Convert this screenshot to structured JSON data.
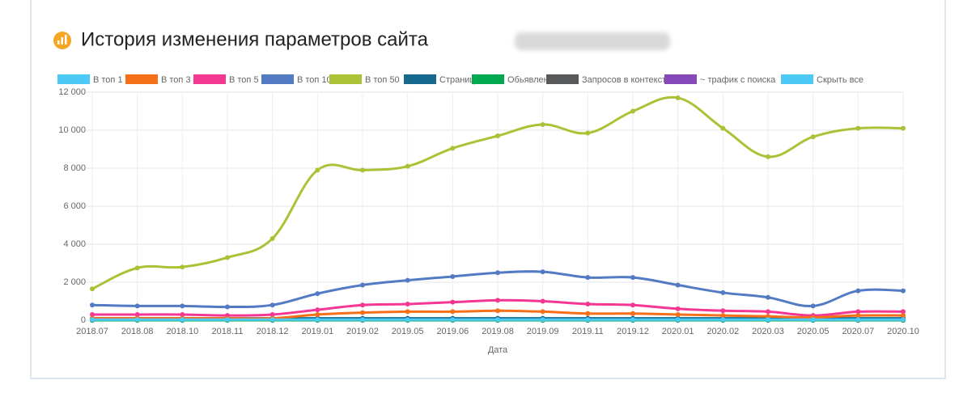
{
  "chart_data": {
    "type": "line",
    "title": "История изменения параметров сайта",
    "x_label": "Дата",
    "categories": [
      "2018.07",
      "2018.08",
      "2018.10",
      "2018.11",
      "2018.12",
      "2019.01",
      "2019.02",
      "2019.05",
      "2019.06",
      "2019.08",
      "2019.09",
      "2019.11",
      "2019.12",
      "2020.01",
      "2020.02",
      "2020.03",
      "2020.05",
      "2020.07",
      "2020.10"
    ],
    "series": [
      {
        "name": "В топ 1",
        "color": "#4dc9f6",
        "values": [
          30,
          30,
          30,
          30,
          30,
          30,
          30,
          30,
          30,
          30,
          30,
          30,
          30,
          30,
          30,
          30,
          30,
          30,
          30
        ]
      },
      {
        "name": "В топ 3",
        "color": "#f67019",
        "values": [
          100,
          100,
          100,
          100,
          100,
          300,
          400,
          450,
          450,
          500,
          450,
          350,
          350,
          300,
          250,
          200,
          150,
          250,
          250
        ]
      },
      {
        "name": "В топ 5",
        "color": "#f53794",
        "values": [
          300,
          300,
          300,
          250,
          300,
          550,
          800,
          850,
          950,
          1050,
          1000,
          850,
          800,
          600,
          500,
          450,
          250,
          450,
          450
        ]
      },
      {
        "name": "В топ 10",
        "color": "#537bc4",
        "values": [
          800,
          750,
          750,
          700,
          800,
          1400,
          1850,
          2100,
          2300,
          2500,
          2550,
          2250,
          2250,
          1850,
          1450,
          1200,
          750,
          1550,
          1550
        ]
      },
      {
        "name": "В топ 50",
        "color": "#acc236",
        "values": [
          1650,
          2750,
          2800,
          3300,
          4300,
          7900,
          7900,
          8100,
          9050,
          9700,
          10300,
          9850,
          11000,
          11700,
          10100,
          8600,
          9650,
          10100,
          10100
        ]
      },
      {
        "name": "Страниц",
        "color": "#166a8f",
        "values": [
          100,
          100,
          100,
          100,
          100,
          100,
          100,
          100,
          100,
          100,
          100,
          100,
          100,
          100,
          100,
          100,
          100,
          100,
          100
        ]
      },
      {
        "name": "Обьявлений",
        "color": "#00a950",
        "values": [
          0,
          0,
          0,
          0,
          0,
          0,
          0,
          0,
          0,
          0,
          0,
          0,
          0,
          0,
          0,
          0,
          0,
          0,
          0
        ]
      },
      {
        "name": "Запросов в контексте",
        "color": "#58595b",
        "values": [
          0,
          0,
          0,
          0,
          0,
          0,
          0,
          0,
          0,
          0,
          0,
          0,
          0,
          0,
          0,
          0,
          0,
          0,
          0
        ]
      },
      {
        "name": "~ трафик с поиска",
        "color": "#8549ba",
        "values": [
          0,
          0,
          0,
          0,
          0,
          0,
          0,
          0,
          0,
          0,
          0,
          0,
          0,
          0,
          0,
          0,
          0,
          0,
          0
        ]
      }
    ],
    "hide_all": {
      "name": "Скрыть все",
      "color": "#4dc9f6"
    },
    "ylim": [
      0,
      12000
    ],
    "yticks": [
      0,
      {
        "value": 2000,
        "label": "2 000"
      },
      {
        "value": 4000,
        "label": "4 000"
      },
      {
        "value": 6000,
        "label": "6 000"
      },
      {
        "value": 8000,
        "label": "8 000"
      },
      {
        "value": 10000,
        "label": "10 000"
      },
      {
        "value": 12000,
        "label": "12 000"
      }
    ],
    "grid": true
  }
}
